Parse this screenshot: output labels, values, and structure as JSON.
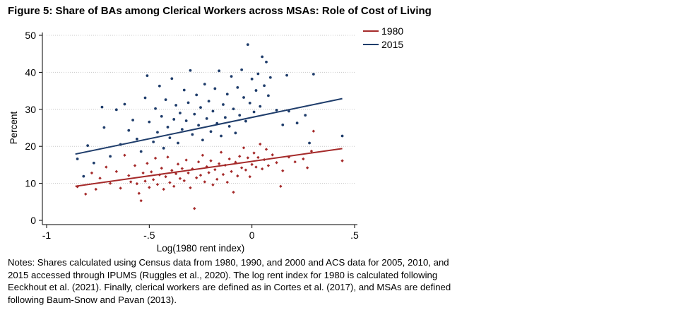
{
  "title": "Figure 5: Share of BAs among Clerical Workers across MSAs: Role of Cost of Living",
  "notes": "Notes: Shares calculated using Census data from 1980, 1990, and 2000 and ACS data for 2005, 2010, and 2015 accessed through IPUMS (Ruggles et al., 2020). The log rent index for 1980 is calculated following Eeckhout et al. (2021). Finally, clerical workers are defined as in Cortes et al. (2017), and MSAs are defined following Baum-Snow and Pavan (2013).",
  "chart_data": {
    "type": "scatter",
    "title": "Figure 5: Share of BAs among Clerical Workers across MSAs: Role of Cost of Living",
    "xlabel": "Log(1980 rent index)",
    "ylabel": "Percent",
    "xlim": [
      -1,
      0.5
    ],
    "ylim": [
      0,
      50
    ],
    "xticks": [
      -1,
      -0.5,
      0,
      0.5
    ],
    "xtick_labels": [
      "-1",
      "-.5",
      "0",
      ".5"
    ],
    "yticks": [
      0,
      10,
      20,
      30,
      40,
      50
    ],
    "ytick_labels": [
      "0",
      "10",
      "20",
      "30",
      "40",
      "50"
    ],
    "grid": "horizontal",
    "legend_position": "top-right",
    "series": [
      {
        "name": "1980",
        "color": "#a52a2a",
        "marker": "diamond",
        "fit_line": [
          [
            -0.86,
            9.2
          ],
          [
            0.44,
            19.4
          ]
        ],
        "points": [
          [
            -0.85,
            9.1
          ],
          [
            -0.81,
            7.1
          ],
          [
            -0.78,
            12.8
          ],
          [
            -0.76,
            8.4
          ],
          [
            -0.74,
            11.4
          ],
          [
            -0.71,
            14.4
          ],
          [
            -0.69,
            10.0
          ],
          [
            -0.66,
            13.2
          ],
          [
            -0.64,
            8.7
          ],
          [
            -0.62,
            17.6
          ],
          [
            -0.6,
            12.1
          ],
          [
            -0.59,
            10.4
          ],
          [
            -0.57,
            14.8
          ],
          [
            -0.56,
            9.9
          ],
          [
            -0.55,
            7.3
          ],
          [
            -0.54,
            5.3
          ],
          [
            -0.53,
            12.8
          ],
          [
            -0.52,
            10.6
          ],
          [
            -0.51,
            15.4
          ],
          [
            -0.5,
            8.9
          ],
          [
            -0.49,
            13.1
          ],
          [
            -0.48,
            11.0
          ],
          [
            -0.47,
            16.8
          ],
          [
            -0.46,
            9.7
          ],
          [
            -0.45,
            12.3
          ],
          [
            -0.44,
            14.1
          ],
          [
            -0.43,
            8.4
          ],
          [
            -0.42,
            11.8
          ],
          [
            -0.41,
            17.1
          ],
          [
            -0.4,
            10.2
          ],
          [
            -0.39,
            13.5
          ],
          [
            -0.38,
            9.2
          ],
          [
            -0.37,
            12.6
          ],
          [
            -0.36,
            15.2
          ],
          [
            -0.35,
            11.3
          ],
          [
            -0.34,
            14.0
          ],
          [
            -0.33,
            10.7
          ],
          [
            -0.32,
            16.3
          ],
          [
            -0.31,
            12.8
          ],
          [
            -0.3,
            8.8
          ],
          [
            -0.29,
            13.9
          ],
          [
            -0.28,
            3.2
          ],
          [
            -0.27,
            11.5
          ],
          [
            -0.26,
            15.8
          ],
          [
            -0.25,
            12.2
          ],
          [
            -0.24,
            17.6
          ],
          [
            -0.23,
            10.4
          ],
          [
            -0.22,
            14.5
          ],
          [
            -0.21,
            12.9
          ],
          [
            -0.2,
            16.1
          ],
          [
            -0.19,
            9.6
          ],
          [
            -0.18,
            13.7
          ],
          [
            -0.17,
            11.1
          ],
          [
            -0.16,
            15.3
          ],
          [
            -0.15,
            18.4
          ],
          [
            -0.14,
            12.4
          ],
          [
            -0.13,
            14.9
          ],
          [
            -0.12,
            10.3
          ],
          [
            -0.11,
            16.6
          ],
          [
            -0.1,
            13.2
          ],
          [
            -0.09,
            7.6
          ],
          [
            -0.08,
            15.7
          ],
          [
            -0.07,
            12.0
          ],
          [
            -0.06,
            17.3
          ],
          [
            -0.05,
            14.2
          ],
          [
            -0.04,
            19.6
          ],
          [
            -0.03,
            13.6
          ],
          [
            -0.02,
            16.9
          ],
          [
            -0.01,
            11.8
          ],
          [
            0.0,
            15.1
          ],
          [
            0.01,
            18.2
          ],
          [
            0.02,
            14.4
          ],
          [
            0.03,
            17.0
          ],
          [
            0.04,
            20.6
          ],
          [
            0.05,
            13.9
          ],
          [
            0.06,
            16.4
          ],
          [
            0.07,
            19.2
          ],
          [
            0.08,
            14.8
          ],
          [
            0.1,
            17.7
          ],
          [
            0.12,
            15.6
          ],
          [
            0.14,
            9.2
          ],
          [
            0.15,
            13.4
          ],
          [
            0.18,
            17.1
          ],
          [
            0.21,
            15.8
          ],
          [
            0.25,
            16.6
          ],
          [
            0.27,
            14.2
          ],
          [
            0.29,
            18.7
          ],
          [
            0.3,
            24.1
          ],
          [
            0.44,
            16.1
          ]
        ]
      },
      {
        "name": "2015",
        "color": "#1f3d6b",
        "marker": "circle",
        "fit_line": [
          [
            -0.86,
            17.9
          ],
          [
            0.44,
            32.9
          ]
        ],
        "points": [
          [
            -0.85,
            16.6
          ],
          [
            -0.82,
            11.9
          ],
          [
            -0.8,
            20.2
          ],
          [
            -0.77,
            15.5
          ],
          [
            -0.73,
            30.6
          ],
          [
            -0.72,
            25.1
          ],
          [
            -0.69,
            17.3
          ],
          [
            -0.66,
            29.9
          ],
          [
            -0.64,
            20.5
          ],
          [
            -0.62,
            31.4
          ],
          [
            -0.6,
            24.3
          ],
          [
            -0.58,
            27.1
          ],
          [
            -0.56,
            22.0
          ],
          [
            -0.54,
            18.6
          ],
          [
            -0.52,
            33.1
          ],
          [
            -0.51,
            39.1
          ],
          [
            -0.5,
            26.6
          ],
          [
            -0.48,
            21.2
          ],
          [
            -0.47,
            30.2
          ],
          [
            -0.46,
            23.8
          ],
          [
            -0.45,
            36.3
          ],
          [
            -0.44,
            28.1
          ],
          [
            -0.43,
            19.5
          ],
          [
            -0.42,
            32.6
          ],
          [
            -0.41,
            25.2
          ],
          [
            -0.4,
            22.3
          ],
          [
            -0.39,
            38.3
          ],
          [
            -0.38,
            27.3
          ],
          [
            -0.37,
            31.1
          ],
          [
            -0.36,
            20.9
          ],
          [
            -0.35,
            29.0
          ],
          [
            -0.34,
            24.6
          ],
          [
            -0.33,
            35.2
          ],
          [
            -0.32,
            26.9
          ],
          [
            -0.31,
            31.8
          ],
          [
            -0.3,
            40.5
          ],
          [
            -0.29,
            23.2
          ],
          [
            -0.28,
            28.7
          ],
          [
            -0.27,
            33.9
          ],
          [
            -0.26,
            25.7
          ],
          [
            -0.25,
            30.5
          ],
          [
            -0.24,
            21.7
          ],
          [
            -0.23,
            36.8
          ],
          [
            -0.22,
            27.5
          ],
          [
            -0.21,
            32.2
          ],
          [
            -0.2,
            24.0
          ],
          [
            -0.19,
            29.5
          ],
          [
            -0.18,
            35.6
          ],
          [
            -0.17,
            26.2
          ],
          [
            -0.16,
            40.4
          ],
          [
            -0.15,
            22.8
          ],
          [
            -0.14,
            31.3
          ],
          [
            -0.13,
            27.8
          ],
          [
            -0.12,
            34.1
          ],
          [
            -0.11,
            25.4
          ],
          [
            -0.1,
            38.9
          ],
          [
            -0.09,
            30.1
          ],
          [
            -0.08,
            23.6
          ],
          [
            -0.07,
            35.9
          ],
          [
            -0.06,
            28.4
          ],
          [
            -0.05,
            40.7
          ],
          [
            -0.04,
            33.2
          ],
          [
            -0.03,
            26.8
          ],
          [
            -0.02,
            47.5
          ],
          [
            -0.01,
            31.7
          ],
          [
            0.0,
            38.2
          ],
          [
            0.01,
            29.3
          ],
          [
            0.02,
            35.1
          ],
          [
            0.03,
            39.6
          ],
          [
            0.04,
            30.8
          ],
          [
            0.05,
            44.2
          ],
          [
            0.06,
            36.4
          ],
          [
            0.07,
            42.8
          ],
          [
            0.08,
            33.7
          ],
          [
            0.09,
            38.6
          ],
          [
            0.12,
            29.8
          ],
          [
            0.15,
            25.8
          ],
          [
            0.17,
            39.2
          ],
          [
            0.18,
            29.5
          ],
          [
            0.22,
            26.3
          ],
          [
            0.26,
            28.4
          ],
          [
            0.28,
            20.9
          ],
          [
            0.3,
            39.5
          ],
          [
            0.44,
            22.8
          ]
        ]
      }
    ]
  }
}
